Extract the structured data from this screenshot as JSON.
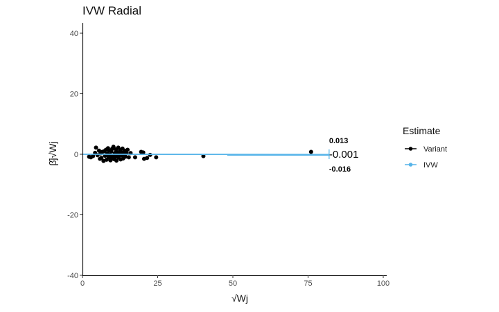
{
  "chart_data": {
    "type": "scatter",
    "title": "IVW Radial",
    "xlabel": "√Wj",
    "ylabel": "β̂j√Wj",
    "xlim": [
      0,
      100
    ],
    "ylim": [
      -40,
      40
    ],
    "x_ticks": [
      0,
      25,
      50,
      75,
      100
    ],
    "y_ticks": [
      -40,
      -20,
      0,
      20,
      40
    ],
    "grid": false,
    "legend": {
      "title": "Estimate",
      "position": "right",
      "entries": [
        {
          "label": "Variant",
          "color": "#000000"
        },
        {
          "label": "IVW",
          "color": "#56B4E9"
        }
      ]
    },
    "ivw": {
      "estimate_label": "-0.001",
      "upper_label": "0.013",
      "lower_label": "-0.016",
      "slope": -0.001,
      "x_end": 82,
      "color": "#56B4E9"
    },
    "series": [
      {
        "name": "Variant",
        "color": "#000000",
        "points": [
          [
            2.2,
            -0.8
          ],
          [
            2.8,
            -1.0
          ],
          [
            3.5,
            -0.6
          ],
          [
            4.2,
            0.5
          ],
          [
            4.5,
            2.2
          ],
          [
            5.0,
            -0.3
          ],
          [
            5.5,
            1.2
          ],
          [
            5.8,
            -1.5
          ],
          [
            6.0,
            0.3
          ],
          [
            6.3,
            -1.2
          ],
          [
            6.6,
            0.8
          ],
          [
            7.0,
            -2.2
          ],
          [
            7.2,
            1.0
          ],
          [
            7.5,
            -0.5
          ],
          [
            7.8,
            1.5
          ],
          [
            8.0,
            -1.8
          ],
          [
            8.2,
            0.2
          ],
          [
            8.5,
            2.0
          ],
          [
            8.7,
            -1.0
          ],
          [
            8.9,
            1.2
          ],
          [
            9.1,
            -0.2
          ],
          [
            9.3,
            -2.0
          ],
          [
            9.5,
            0.9
          ],
          [
            9.7,
            -1.3
          ],
          [
            9.9,
            1.8
          ],
          [
            10.1,
            -0.6
          ],
          [
            10.3,
            2.5
          ],
          [
            10.5,
            -1.6
          ],
          [
            10.7,
            0.4
          ],
          [
            10.9,
            -0.9
          ],
          [
            11.1,
            1.6
          ],
          [
            11.3,
            -2.1
          ],
          [
            11.5,
            0.7
          ],
          [
            11.7,
            -0.4
          ],
          [
            11.9,
            2.2
          ],
          [
            12.1,
            -1.1
          ],
          [
            12.3,
            0.1
          ],
          [
            12.5,
            1.4
          ],
          [
            12.7,
            -1.7
          ],
          [
            12.9,
            0.6
          ],
          [
            13.1,
            -0.3
          ],
          [
            13.3,
            1.9
          ],
          [
            13.5,
            -1.4
          ],
          [
            13.8,
            0.3
          ],
          [
            14.0,
            1.2
          ],
          [
            14.3,
            -0.8
          ],
          [
            14.6,
            0.5
          ],
          [
            15.0,
            1.5
          ],
          [
            15.4,
            -1.0
          ],
          [
            16.0,
            0.4
          ],
          [
            17.5,
            -1.0
          ],
          [
            19.5,
            0.8
          ],
          [
            20.2,
            0.6
          ],
          [
            20.5,
            -1.5
          ],
          [
            21.5,
            -1.2
          ],
          [
            22.5,
            -0.2
          ],
          [
            24.5,
            -1.0
          ],
          [
            40.2,
            -0.6
          ],
          [
            76.0,
            0.8
          ]
        ]
      }
    ]
  }
}
